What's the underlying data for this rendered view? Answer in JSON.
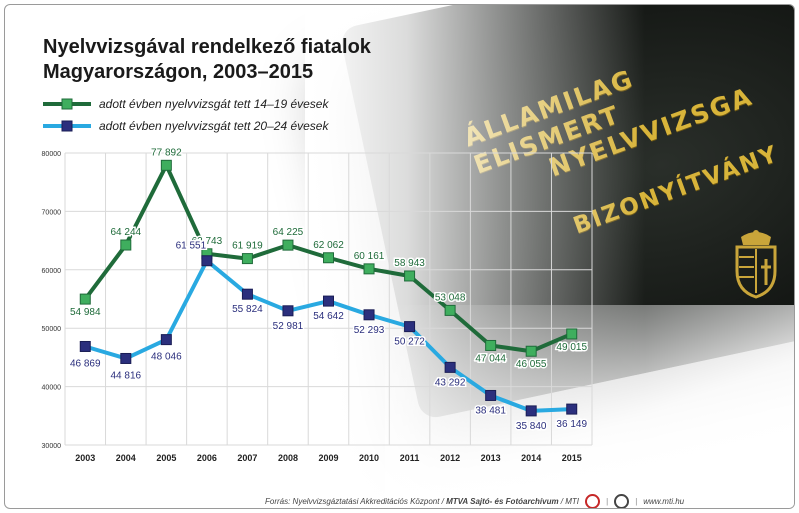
{
  "header": {
    "title_line1": "Nyelvvizsgával rendelkező fiatalok",
    "title_line2": "Magyarországon, 2003–2015"
  },
  "photo": {
    "line1": "ÁLLAMILAG ELISMERT",
    "line2": "NYELVVIZSGA",
    "line3": "BIZONYÍTVÁNY",
    "crest_icon": "hungarian-coat-of-arms-icon"
  },
  "footer": {
    "source_prefix": "Forrás: Nyelvvizsgáztatási Akkreditációs Központ",
    "agency": "MTVA Sajtó- és Fotóarchívum",
    "agency_suffix": "MTI",
    "site": "www.mti.hu"
  },
  "chart_data": {
    "type": "line",
    "title": "Nyelvvizsgával rendelkező fiatalok Magyarországon, 2003–2015",
    "x": [
      "2003",
      "2004",
      "2005",
      "2006",
      "2007",
      "2008",
      "2009",
      "2010",
      "2011",
      "2012",
      "2013",
      "2014",
      "2015"
    ],
    "ylim": [
      30000,
      80000
    ],
    "yticks": [
      "30000",
      "40000",
      "50000",
      "60000",
      "70000",
      "80000"
    ],
    "grid": true,
    "legend_position": "top-left",
    "series": [
      {
        "name": "adott évben nyelvvizsgát tett 14–19 évesek",
        "color": "#1f6b3a",
        "marker": "#3fae5e",
        "values": [
          54984,
          64244,
          77892,
          62743,
          61919,
          64225,
          62062,
          60161,
          58943,
          53048,
          47044,
          46055,
          49015
        ],
        "labels": [
          "54 984",
          "64 244",
          "77 892",
          "62 743",
          "61 919",
          "64 225",
          "62 062",
          "60 161",
          "58 943",
          "53 048",
          "47 044",
          "46 055",
          "49 015"
        ]
      },
      {
        "name": "adott évben nyelvvizsgát tett 20–24 évesek",
        "color": "#29a9e1",
        "marker": "#2b2f7d",
        "values": [
          46869,
          44816,
          48046,
          61551,
          55824,
          52981,
          54642,
          52293,
          50272,
          43292,
          38481,
          35840,
          36149
        ],
        "labels": [
          "46 869",
          "44 816",
          "48 046",
          "61 551",
          "55 824",
          "52 981",
          "54 642",
          "52 293",
          "50 272",
          "43 292",
          "38 481",
          "35 840",
          "36 149"
        ]
      }
    ]
  }
}
